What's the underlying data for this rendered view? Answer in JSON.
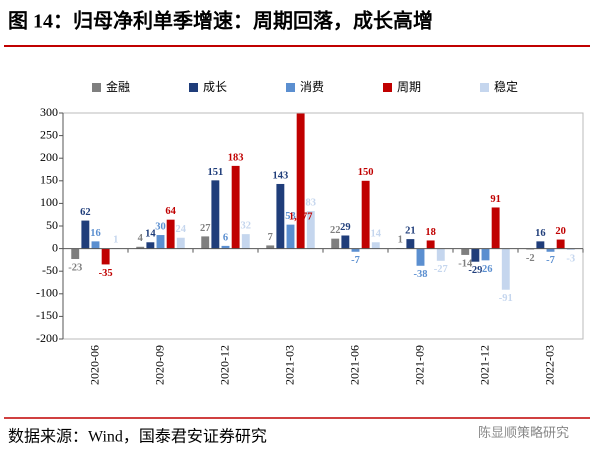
{
  "chart_data": {
    "type": "bar",
    "title": "图 14：归母净利单季增速：周期回落，成长高增",
    "categories": [
      "2020-06",
      "2020-09",
      "2020-12",
      "2021-03",
      "2021-06",
      "2021-09",
      "2021-12",
      "2022-03"
    ],
    "series": [
      {
        "name": "金融",
        "color": "#7f7f7f",
        "values": [
          -23,
          4,
          27,
          7,
          22,
          1,
          -14,
          -2
        ]
      },
      {
        "name": "成长",
        "color": "#1f3d7a",
        "values": [
          62,
          14,
          151,
          143,
          29,
          21,
          -29,
          16
        ]
      },
      {
        "name": "消费",
        "color": "#5b8fd0",
        "values": [
          16,
          30,
          6,
          53,
          -7,
          -38,
          -26,
          -7
        ]
      },
      {
        "name": "周期",
        "color": "#c00000",
        "values": [
          -35,
          64,
          183,
          1377,
          150,
          18,
          91,
          20
        ],
        "value_labels": [
          "-35",
          "64",
          "183",
          "1,377",
          "150",
          "18",
          "91",
          "20"
        ]
      },
      {
        "name": "稳定",
        "color": "#c5d6ee",
        "values": [
          1,
          24,
          32,
          83,
          14,
          -27,
          -91,
          -3
        ]
      }
    ],
    "ylim": [
      -200,
      300
    ],
    "yticks": [
      -200,
      -150,
      -100,
      -50,
      0,
      50,
      100,
      150,
      200,
      250,
      300
    ],
    "legend": "top",
    "source": "数据来源：Wind，国泰君安证券研究",
    "watermark": "陈显顺策略研究"
  }
}
